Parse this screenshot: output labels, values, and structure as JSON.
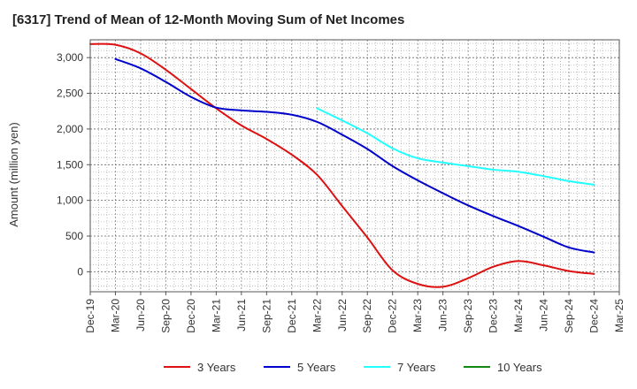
{
  "chart_data": {
    "type": "line",
    "title": "[6317]  Trend of Mean of 12-Month Moving Sum of Net Incomes",
    "xlabel": "",
    "ylabel": "Amount (million yen)",
    "ylim": [
      -280,
      3250
    ],
    "yticks": [
      0,
      500,
      1000,
      1500,
      2000,
      2500,
      3000
    ],
    "ytick_labels": [
      "0",
      "500",
      "1,000",
      "1,500",
      "2,000",
      "2,500",
      "3,000"
    ],
    "xticks": [
      "Dec-19",
      "Mar-20",
      "Jun-20",
      "Sep-20",
      "Dec-20",
      "Mar-21",
      "Jun-21",
      "Sep-21",
      "Dec-21",
      "Mar-22",
      "Jun-22",
      "Sep-22",
      "Dec-22",
      "Mar-23",
      "Jun-23",
      "Sep-23",
      "Dec-23",
      "Mar-24",
      "Jun-24",
      "Sep-24",
      "Dec-24",
      "Mar-25"
    ],
    "grid": true,
    "legend_position": "bottom",
    "series": [
      {
        "name": "3 Years",
        "color": "#dd1111",
        "start_index": 0,
        "values": [
          3190,
          3180,
          3060,
          2830,
          2560,
          2290,
          2050,
          1860,
          1640,
          1360,
          920,
          480,
          20,
          -170,
          -210,
          -90,
          70,
          150,
          90,
          10,
          -30
        ]
      },
      {
        "name": "5 Years",
        "color": "#0000cc",
        "start_index": 1,
        "values": [
          2980,
          2850,
          2660,
          2450,
          2300,
          2260,
          2240,
          2200,
          2100,
          1920,
          1720,
          1480,
          1280,
          1100,
          930,
          780,
          640,
          490,
          340,
          270
        ]
      },
      {
        "name": "7 Years",
        "color": "#22ffff",
        "start_index": 9,
        "values": [
          2290,
          2120,
          1940,
          1730,
          1590,
          1530,
          1480,
          1430,
          1400,
          1340,
          1270,
          1220
        ]
      },
      {
        "name": "10 Years",
        "color": "#118811",
        "start_index": 0,
        "values": []
      }
    ]
  }
}
